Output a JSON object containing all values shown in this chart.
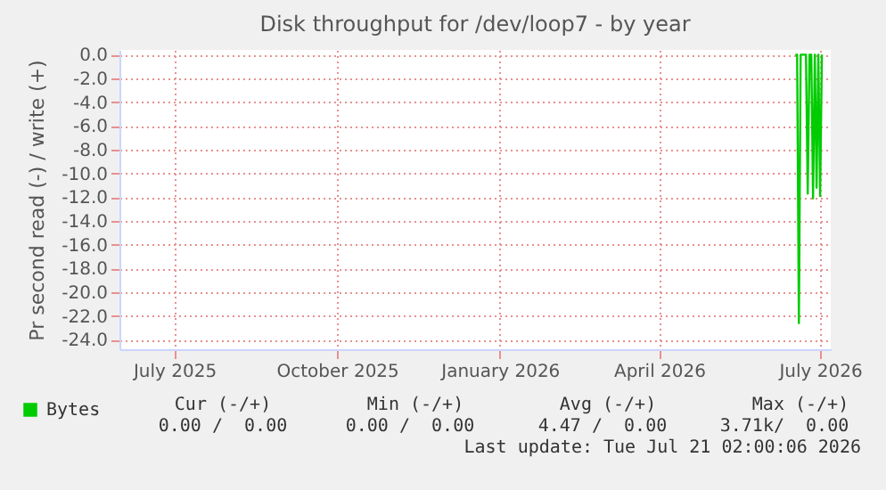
{
  "chart_data": {
    "type": "line",
    "title": "Disk throughput for /dev/loop7 - by year",
    "ylabel": "Pr second read (-) / write (+)",
    "x": [
      "2026-07-01",
      "2026-07-02",
      "2026-07-03",
      "2026-07-04",
      "2026-07-07",
      "2026-07-08",
      "2026-07-09",
      "2026-07-10",
      "2026-07-11",
      "2026-07-12",
      "2026-07-13",
      "2026-07-14",
      "2026-07-15",
      "2026-07-16"
    ],
    "series": [
      {
        "name": "Bytes",
        "color": "#00cc00",
        "values": [
          0,
          0,
          -22.6,
          0,
          0,
          -11.7,
          0,
          0,
          -12.1,
          0,
          -11.2,
          0,
          -11.9,
          0
        ]
      }
    ],
    "xlim": [
      "2025-06-14",
      "2026-07-21"
    ],
    "xticks": [
      {
        "value": "2025-07-15",
        "label": "July 2025"
      },
      {
        "value": "2025-10-15",
        "label": "October 2025"
      },
      {
        "value": "2026-01-15",
        "label": "January 2026"
      },
      {
        "value": "2026-04-15",
        "label": "April 2026"
      },
      {
        "value": "2026-07-15",
        "label": "July 2026"
      }
    ],
    "ylim": [
      -24.8,
      0.4
    ],
    "yticks": [
      {
        "value": 0,
        "label": "0.0"
      },
      {
        "value": -2,
        "label": "-2.0"
      },
      {
        "value": -4,
        "label": "-4.0"
      },
      {
        "value": -6,
        "label": "-6.0"
      },
      {
        "value": -8,
        "label": "-8.0"
      },
      {
        "value": -10,
        "label": "-10.0"
      },
      {
        "value": -12,
        "label": "-12.0"
      },
      {
        "value": -14,
        "label": "-14.0"
      },
      {
        "value": -16,
        "label": "-16.0"
      },
      {
        "value": -18,
        "label": "-18.0"
      },
      {
        "value": -20,
        "label": "-20.0"
      },
      {
        "value": -22,
        "label": "-22.0"
      },
      {
        "value": -24,
        "label": "-24.0"
      }
    ],
    "grid": true,
    "legend": "bottom",
    "annotations": [
      "Cur (-/+)",
      "Min (-/+)",
      "Avg (-/+)",
      "Max (-/+)",
      "0.00 /  0.00",
      "0.00 /  0.00",
      "4.47 /  0.00",
      "3.71k/  0.00",
      "Last update: Tue Jul 21 02:00:06 2026"
    ]
  }
}
